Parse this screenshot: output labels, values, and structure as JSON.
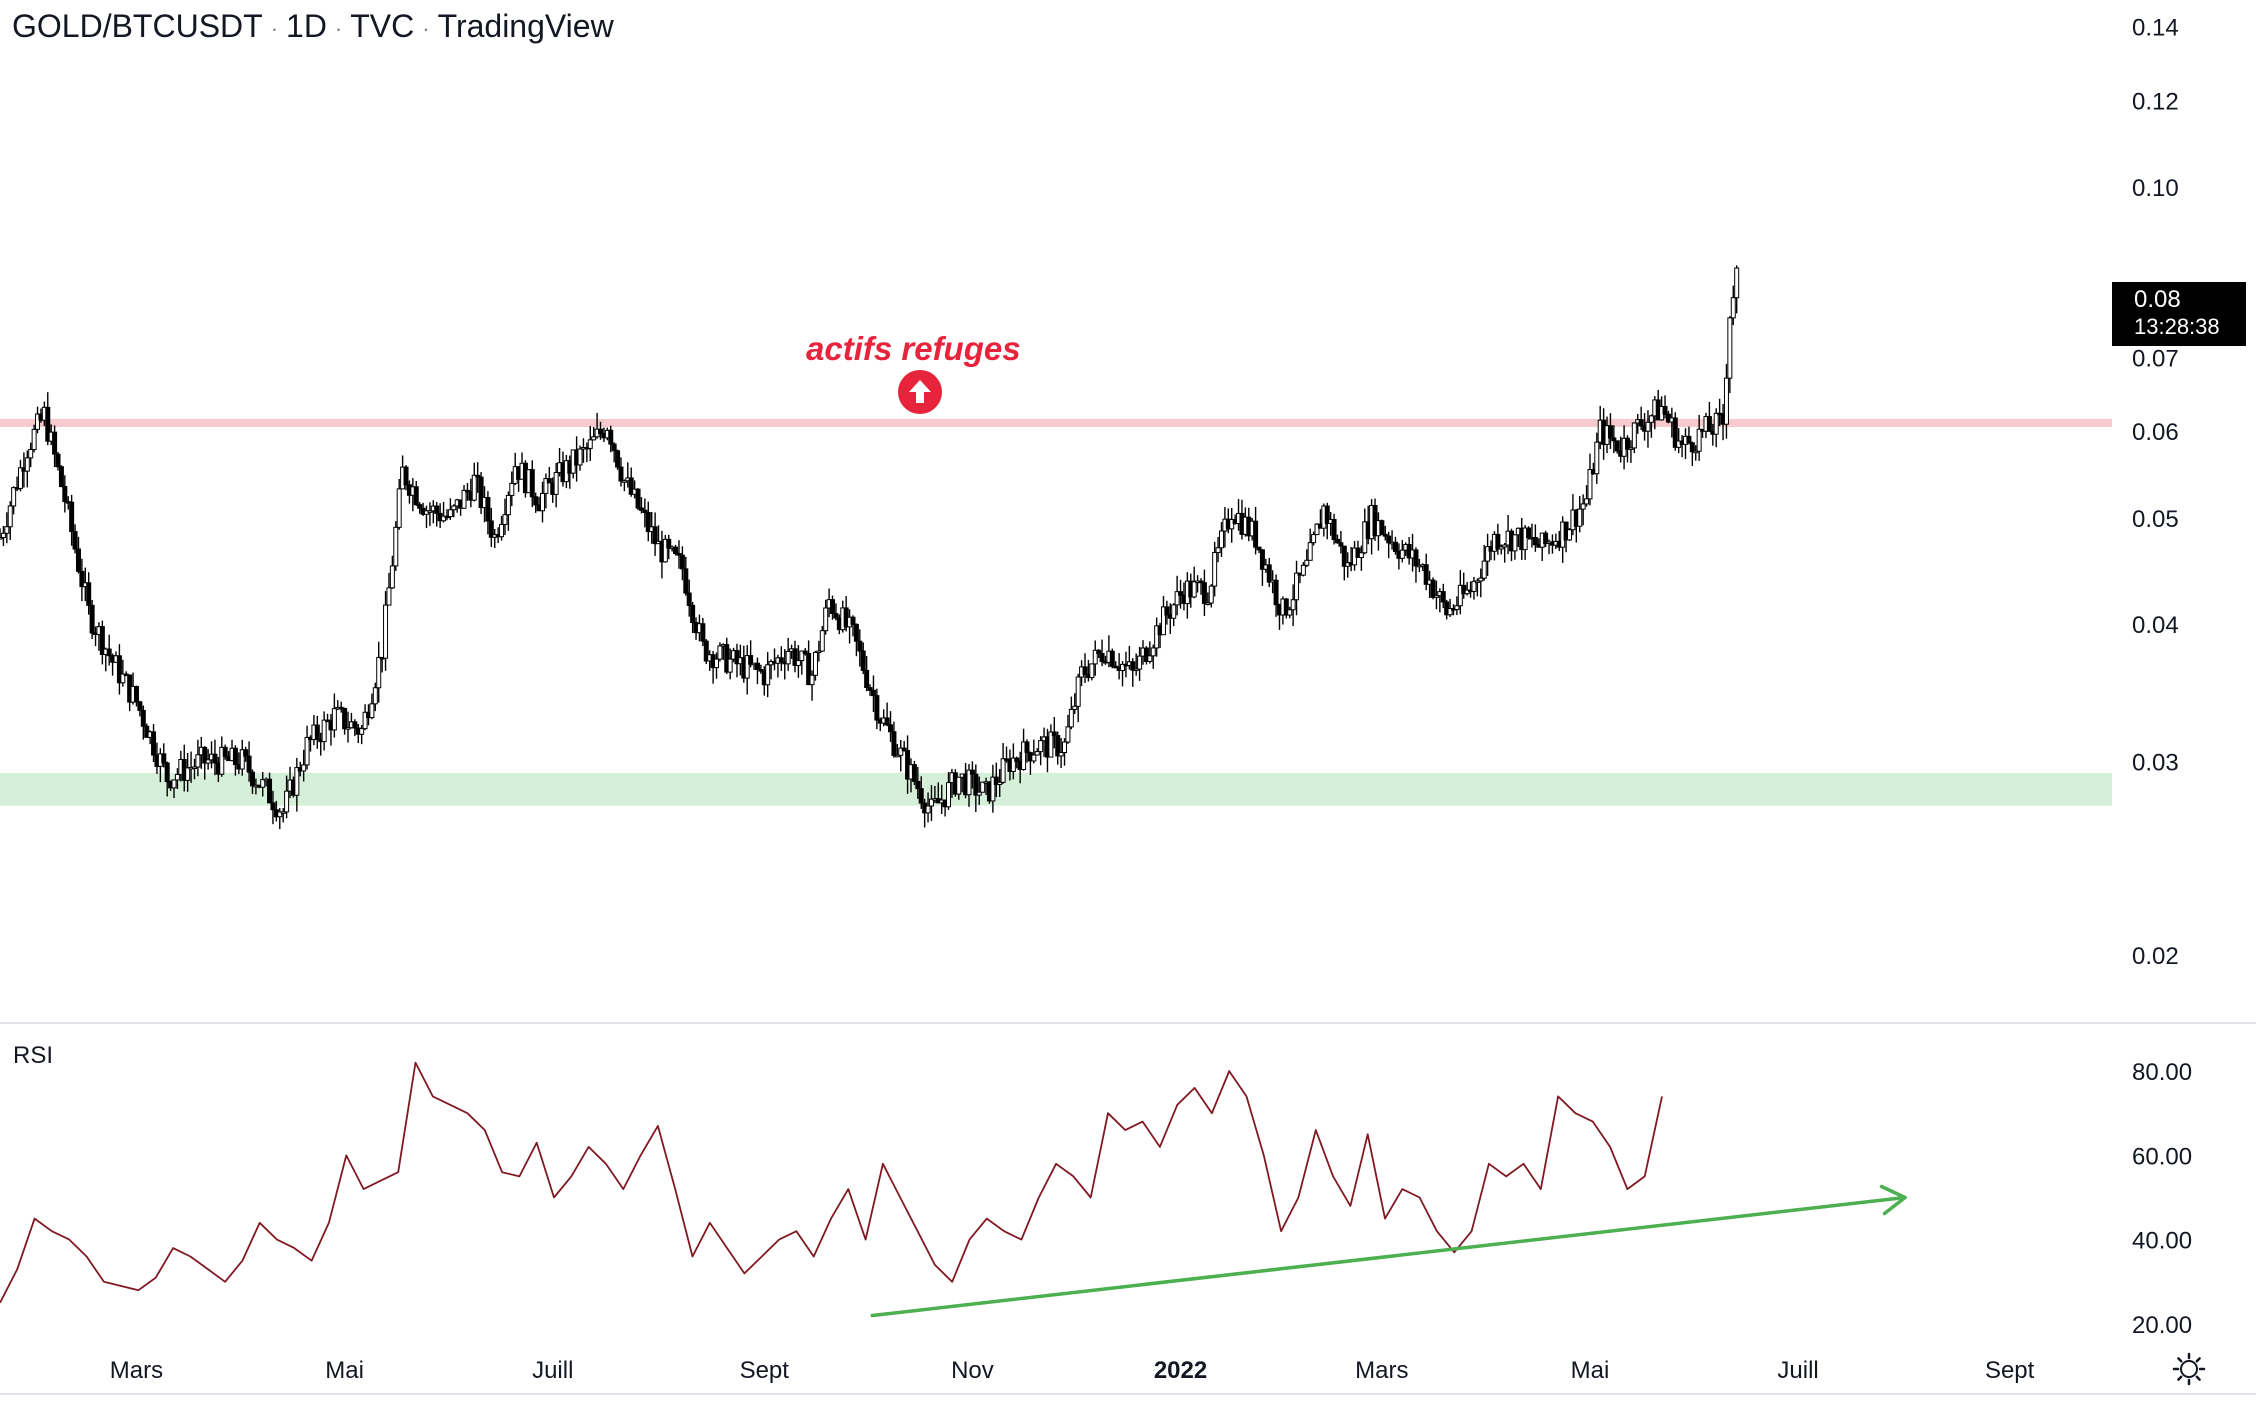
{
  "header": {
    "symbol": "GOLD/BTCUSDT",
    "interval": "1D",
    "source": "TVC",
    "platform": "TradingView"
  },
  "price_label": {
    "price": "0.08",
    "countdown": "13:28:38"
  },
  "annotation": {
    "text": "actifs refuges",
    "icon": "arrow-up-circle-icon",
    "color": "#e8243c"
  },
  "rsi_label": "RSI",
  "colors": {
    "candle": "#000000",
    "resistance_zone": "#f8c9cd",
    "support_zone": "#d6efd9",
    "rsi_line": "#801922",
    "trend_arrow": "#4caf50",
    "axis_text": "#131722"
  },
  "chart_data": [
    {
      "type": "candlestick",
      "title": "GOLD/BTCUSDT · 1D · TVC",
      "y_scale": "log",
      "ylim": [
        0.018,
        0.145
      ],
      "y_ticks": [
        "0.14",
        "0.12",
        "0.10",
        "0.08",
        "0.07",
        "0.06",
        "0.05",
        "0.04",
        "0.03",
        "0.02"
      ],
      "x_ticks": [
        "Mars",
        "Mai",
        "Juill",
        "Sept",
        "Nov",
        "2022",
        "Mars",
        "Mai",
        "Juill",
        "Sept"
      ],
      "xlim": [
        "2021-01-20",
        "2022-10-01"
      ],
      "series_points": [
        [
          "2021-01-20",
          0.048
        ],
        [
          "2021-01-28",
          0.058
        ],
        [
          "2021-02-02",
          0.062
        ],
        [
          "2021-02-08",
          0.052
        ],
        [
          "2021-02-15",
          0.041
        ],
        [
          "2021-02-22",
          0.037
        ],
        [
          "2021-03-01",
          0.034
        ],
        [
          "2021-03-10",
          0.029
        ],
        [
          "2021-03-20",
          0.03
        ],
        [
          "2021-04-01",
          0.03
        ],
        [
          "2021-04-13",
          0.027
        ],
        [
          "2021-04-20",
          0.031
        ],
        [
          "2021-04-28",
          0.033
        ],
        [
          "2021-05-06",
          0.032
        ],
        [
          "2021-05-12",
          0.038
        ],
        [
          "2021-05-18",
          0.055
        ],
        [
          "2021-05-25",
          0.051
        ],
        [
          "2021-06-01",
          0.05
        ],
        [
          "2021-06-08",
          0.054
        ],
        [
          "2021-06-14",
          0.048
        ],
        [
          "2021-06-20",
          0.056
        ],
        [
          "2021-06-27",
          0.052
        ],
        [
          "2021-07-04",
          0.055
        ],
        [
          "2021-07-12",
          0.058
        ],
        [
          "2021-07-17",
          0.061
        ],
        [
          "2021-07-22",
          0.054
        ],
        [
          "2021-08-01",
          0.047
        ],
        [
          "2021-08-08",
          0.045
        ],
        [
          "2021-08-14",
          0.038
        ],
        [
          "2021-08-22",
          0.037
        ],
        [
          "2021-09-01",
          0.036
        ],
        [
          "2021-09-08",
          0.038
        ],
        [
          "2021-09-15",
          0.036
        ],
        [
          "2021-09-20",
          0.042
        ],
        [
          "2021-09-27",
          0.039
        ],
        [
          "2021-10-05",
          0.033
        ],
        [
          "2021-10-12",
          0.03
        ],
        [
          "2021-10-20",
          0.027
        ],
        [
          "2021-10-28",
          0.029
        ],
        [
          "2021-11-05",
          0.028
        ],
        [
          "2021-11-12",
          0.03
        ],
        [
          "2021-11-20",
          0.031
        ],
        [
          "2021-11-28",
          0.031
        ],
        [
          "2021-12-03",
          0.036
        ],
        [
          "2021-12-10",
          0.038
        ],
        [
          "2021-12-18",
          0.036
        ],
        [
          "2021-12-26",
          0.04
        ],
        [
          "2022-01-02",
          0.043
        ],
        [
          "2022-01-09",
          0.043
        ],
        [
          "2022-01-16",
          0.051
        ],
        [
          "2022-01-23",
          0.048
        ],
        [
          "2022-01-31",
          0.041
        ],
        [
          "2022-02-07",
          0.045
        ],
        [
          "2022-02-12",
          0.051
        ],
        [
          "2022-02-19",
          0.045
        ],
        [
          "2022-02-26",
          0.05
        ],
        [
          "2022-03-06",
          0.047
        ],
        [
          "2022-03-13",
          0.045
        ],
        [
          "2022-03-20",
          0.041
        ],
        [
          "2022-03-27",
          0.043
        ],
        [
          "2022-04-03",
          0.048
        ],
        [
          "2022-04-10",
          0.048
        ],
        [
          "2022-04-17",
          0.047
        ],
        [
          "2022-04-24",
          0.049
        ],
        [
          "2022-04-30",
          0.052
        ],
        [
          "2022-05-04",
          0.06
        ],
        [
          "2022-05-10",
          0.058
        ],
        [
          "2022-05-16",
          0.061
        ],
        [
          "2022-05-22",
          0.063
        ],
        [
          "2022-05-28",
          0.058
        ],
        [
          "2022-06-04",
          0.06
        ],
        [
          "2022-06-09",
          0.061
        ],
        [
          "2022-06-11",
          0.077
        ],
        [
          "2022-06-13",
          0.083
        ]
      ],
      "zones": [
        {
          "name": "resistance",
          "low": 0.0605,
          "high": 0.0615,
          "color": "#f8c9cd"
        },
        {
          "name": "support",
          "low": 0.0278,
          "high": 0.0288,
          "color": "#d6efd9"
        }
      ],
      "last_price": 0.08
    },
    {
      "type": "line",
      "title": "RSI",
      "ylim": [
        15,
        85
      ],
      "y_ticks": [
        "80.00",
        "60.00",
        "40.00",
        "20.00"
      ],
      "series": [
        {
          "values": [
            25,
            33,
            45,
            42,
            40,
            36,
            30,
            29,
            28,
            31,
            38,
            36,
            33,
            30,
            35,
            44,
            40,
            38,
            35,
            44,
            60,
            52,
            54,
            56,
            82,
            74,
            72,
            70,
            66,
            56,
            55,
            63,
            50,
            55,
            62,
            58,
            52,
            60,
            67,
            52,
            36,
            44,
            38,
            32,
            36,
            40,
            42,
            36,
            45,
            52,
            40,
            58,
            50,
            42,
            34,
            30,
            40,
            45,
            42,
            40,
            50,
            58,
            55,
            50,
            70,
            66,
            68,
            62,
            72,
            76,
            70,
            80,
            74,
            60,
            42,
            50,
            66,
            55,
            48,
            65,
            45,
            52,
            50,
            42,
            37,
            42,
            58,
            55,
            58,
            52,
            74,
            70,
            68,
            62,
            52,
            55,
            74
          ]
        }
      ],
      "trend_arrow": {
        "from": [
          0.413,
          22
        ],
        "to": [
          0.902,
          50
        ]
      }
    }
  ]
}
